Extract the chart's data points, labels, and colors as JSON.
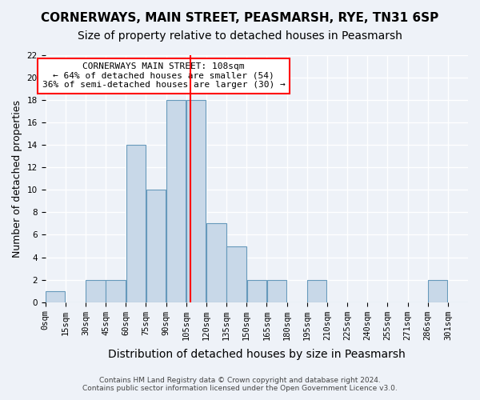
{
  "title": "CORNERWAYS, MAIN STREET, PEASMARSH, RYE, TN31 6SP",
  "subtitle": "Size of property relative to detached houses in Peasmarsh",
  "xlabel": "Distribution of detached houses by size in Peasmarsh",
  "ylabel": "Number of detached properties",
  "bins": [
    0,
    15,
    30,
    45,
    60,
    75,
    90,
    105,
    120,
    135,
    150,
    165,
    180,
    195,
    210,
    225,
    240,
    255,
    270,
    285,
    300,
    315
  ],
  "bin_labels": [
    "0sqm",
    "15sqm",
    "30sqm",
    "45sqm",
    "60sqm",
    "75sqm",
    "90sqm",
    "105sqm",
    "120sqm",
    "135sqm",
    "150sqm",
    "165sqm",
    "180sqm",
    "195sqm",
    "210sqm",
    "225sqm",
    "240sqm",
    "255sqm",
    "271sqm",
    "286sqm",
    "301sqm"
  ],
  "counts": [
    1,
    0,
    2,
    2,
    14,
    10,
    18,
    18,
    7,
    5,
    2,
    2,
    0,
    2,
    0,
    0,
    0,
    0,
    0,
    2,
    0
  ],
  "bar_color": "#c8d8e8",
  "bar_edge_color": "#6699bb",
  "red_line_x": 108,
  "annotation_title": "CORNERWAYS MAIN STREET: 108sqm",
  "annotation_line1": "← 64% of detached houses are smaller (54)",
  "annotation_line2": "36% of semi-detached houses are larger (30) →",
  "ylim": [
    0,
    22
  ],
  "yticks": [
    0,
    2,
    4,
    6,
    8,
    10,
    12,
    14,
    16,
    18,
    20,
    22
  ],
  "footer1": "Contains HM Land Registry data © Crown copyright and database right 2024.",
  "footer2": "Contains public sector information licensed under the Open Government Licence v3.0.",
  "bg_color": "#eef2f8",
  "grid_color": "#ffffff",
  "title_fontsize": 11,
  "subtitle_fontsize": 10,
  "axis_label_fontsize": 9,
  "tick_fontsize": 7.5,
  "annotation_fontsize": 8
}
